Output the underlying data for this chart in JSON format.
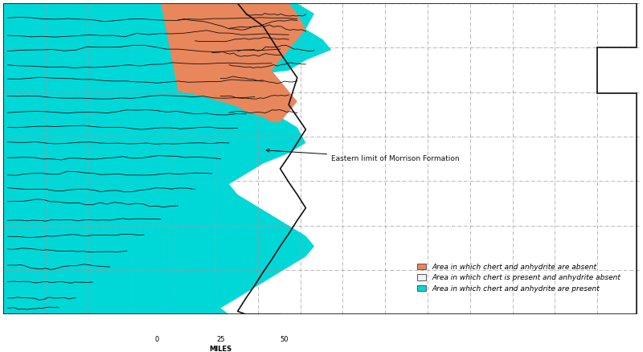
{
  "legend_entries": [
    {
      "label": "Area in which chert and anhydrite are absent",
      "color": "#E8865C"
    },
    {
      "label": "Area in which chert is present and anhydrite absent",
      "color": "#F2F2F2"
    },
    {
      "label": "Area in which chert and anhydrite are present",
      "color": "#00D8D8"
    }
  ],
  "annotation_text": "Eastern limit of Morrison Formation",
  "scale_label": "MILES",
  "bg_color": "#FFFFFF",
  "lon_min": -102.05,
  "lon_max": -94.58,
  "lat_min": 36.99,
  "lat_max": 40.0,
  "fig_width": 8.0,
  "fig_height": 4.38,
  "dpi": 100,
  "county_color": "#888888",
  "state_border_color": "#111111",
  "contour_color": "#111111"
}
